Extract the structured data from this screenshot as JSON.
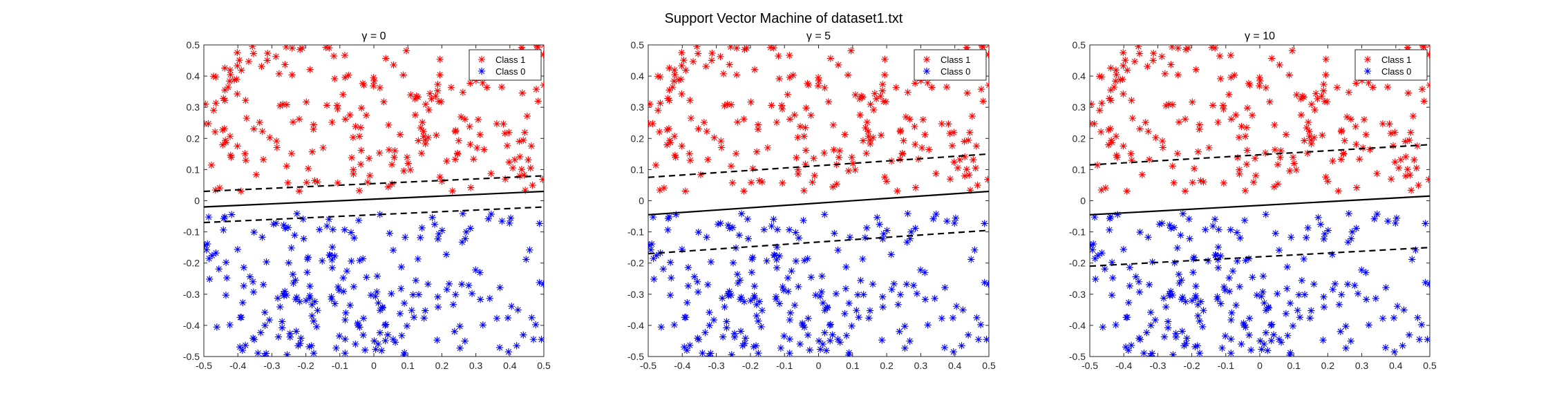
{
  "figure": {
    "title": "Support Vector Machine of dataset1.txt",
    "colors": {
      "class1": "#ff0000",
      "class0": "#0000ff",
      "lines": "#000000"
    }
  },
  "chart_data": [
    {
      "type": "scatter",
      "title": "γ = 0",
      "xlim": [
        -0.5,
        0.5
      ],
      "ylim": [
        -0.5,
        0.5
      ],
      "xticks": [
        "-0.5",
        "-0.4",
        "-0.3",
        "-0.2",
        "-0.1",
        "0",
        "0.1",
        "0.2",
        "0.3",
        "0.4",
        "0.5"
      ],
      "yticks": [
        "-0.5",
        "-0.4",
        "-0.3",
        "-0.2",
        "-0.1",
        "0",
        "0.1",
        "0.2",
        "0.3",
        "0.4",
        "0.5"
      ],
      "legend": {
        "placement": "top-right",
        "entries": [
          "Class 1",
          "Class 0"
        ]
      },
      "series": [
        {
          "name": "Class 1",
          "marker": "*",
          "color": "#ff0000",
          "n_points": 230,
          "y_range": [
            0.03,
            0.5
          ]
        },
        {
          "name": "Class 0",
          "marker": "*",
          "color": "#0000ff",
          "n_points": 230,
          "y_range": [
            -0.5,
            -0.04
          ]
        }
      ],
      "decision_boundary": {
        "x": [
          -0.5,
          0.5
        ],
        "y": [
          -0.02,
          0.03
        ]
      },
      "margin_upper": {
        "x": [
          -0.5,
          0.5
        ],
        "y": [
          0.03,
          0.08
        ]
      },
      "margin_lower": {
        "x": [
          -0.5,
          0.5
        ],
        "y": [
          -0.07,
          -0.02
        ]
      }
    },
    {
      "type": "scatter",
      "title": "γ = 5",
      "xlim": [
        -0.5,
        0.5
      ],
      "ylim": [
        -0.5,
        0.5
      ],
      "xticks": [
        "-0.5",
        "-0.4",
        "-0.3",
        "-0.2",
        "-0.1",
        "0",
        "0.1",
        "0.2",
        "0.3",
        "0.4",
        "0.5"
      ],
      "yticks": [
        "-0.5",
        "-0.4",
        "-0.3",
        "-0.2",
        "-0.1",
        "0",
        "0.1",
        "0.2",
        "0.3",
        "0.4",
        "0.5"
      ],
      "legend": {
        "placement": "top-right",
        "entries": [
          "Class 1",
          "Class 0"
        ]
      },
      "series": [
        {
          "name": "Class 1",
          "marker": "*",
          "color": "#ff0000",
          "n_points": 230,
          "y_range": [
            0.03,
            0.5
          ]
        },
        {
          "name": "Class 0",
          "marker": "*",
          "color": "#0000ff",
          "n_points": 230,
          "y_range": [
            -0.5,
            -0.04
          ]
        }
      ],
      "decision_boundary": {
        "x": [
          -0.5,
          0.5
        ],
        "y": [
          -0.045,
          0.03
        ]
      },
      "margin_upper": {
        "x": [
          -0.5,
          0.5
        ],
        "y": [
          0.075,
          0.15
        ]
      },
      "margin_lower": {
        "x": [
          -0.5,
          0.5
        ],
        "y": [
          -0.17,
          -0.095
        ]
      }
    },
    {
      "type": "scatter",
      "title": "γ = 10",
      "xlim": [
        -0.5,
        0.5
      ],
      "ylim": [
        -0.5,
        0.5
      ],
      "xticks": [
        "-0.5",
        "-0.4",
        "-0.3",
        "-0.2",
        "-0.1",
        "0",
        "0.1",
        "0.2",
        "0.3",
        "0.4",
        "0.5"
      ],
      "yticks": [
        "-0.5",
        "-0.4",
        "-0.3",
        "-0.2",
        "-0.1",
        "0",
        "0.1",
        "0.2",
        "0.3",
        "0.4",
        "0.5"
      ],
      "legend": {
        "placement": "top-right",
        "entries": [
          "Class 1",
          "Class 0"
        ]
      },
      "series": [
        {
          "name": "Class 1",
          "marker": "*",
          "color": "#ff0000",
          "n_points": 230,
          "y_range": [
            0.03,
            0.5
          ]
        },
        {
          "name": "Class 0",
          "marker": "*",
          "color": "#0000ff",
          "n_points": 230,
          "y_range": [
            -0.5,
            -0.04
          ]
        }
      ],
      "decision_boundary": {
        "x": [
          -0.5,
          0.5
        ],
        "y": [
          -0.045,
          0.015
        ]
      },
      "margin_upper": {
        "x": [
          -0.5,
          0.5
        ],
        "y": [
          0.115,
          0.18
        ]
      },
      "margin_lower": {
        "x": [
          -0.5,
          0.5
        ],
        "y": [
          -0.21,
          -0.15
        ]
      }
    }
  ]
}
